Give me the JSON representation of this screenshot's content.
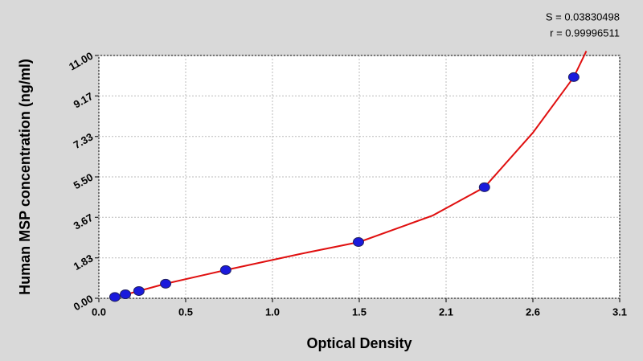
{
  "chart_data": {
    "type": "scatter",
    "xlabel": "Optical Density",
    "ylabel": "Human MSP concentration (ng/ml)",
    "annotations": [
      "S = 0.03830498",
      "r = 0.99996511"
    ],
    "xlim": [
      0,
      3.12
    ],
    "ylim": [
      0,
      11
    ],
    "xticks": [
      {
        "value": 0,
        "label": "0.0"
      },
      {
        "value": 0.52,
        "label": "0.5"
      },
      {
        "value": 1.04,
        "label": "1.0"
      },
      {
        "value": 1.56,
        "label": "1.5"
      },
      {
        "value": 2.08,
        "label": "2.1"
      },
      {
        "value": 2.6,
        "label": "2.6"
      },
      {
        "value": 3.12,
        "label": "3.1"
      }
    ],
    "yticks": [
      {
        "value": 0,
        "label": "0.00"
      },
      1.83,
      3.67,
      {
        "value": 5.5,
        "label": "5.50"
      },
      7.33,
      9.17,
      {
        "value": 11,
        "label": "11.00"
      }
    ],
    "grid": true,
    "series": [
      {
        "color": "#1a1adc",
        "x": [
          0.096,
          0.159,
          0.24,
          0.4,
          0.76,
          1.555,
          2.31,
          2.845
        ],
        "values": [
          0.06,
          0.18,
          0.33,
          0.66,
          1.28,
          2.55,
          5.03,
          10.02
        ]
      },
      {
        "color": "#e01010",
        "x": [
          0.08,
          0.2,
          0.4,
          0.76,
          1.2,
          1.56,
          2.0,
          2.31,
          2.6,
          2.845,
          2.92
        ],
        "values": [
          0,
          0.25,
          0.66,
          1.28,
          2.0,
          2.55,
          3.75,
          5.03,
          7.5,
          10.02,
          11.2
        ]
      }
    ]
  }
}
